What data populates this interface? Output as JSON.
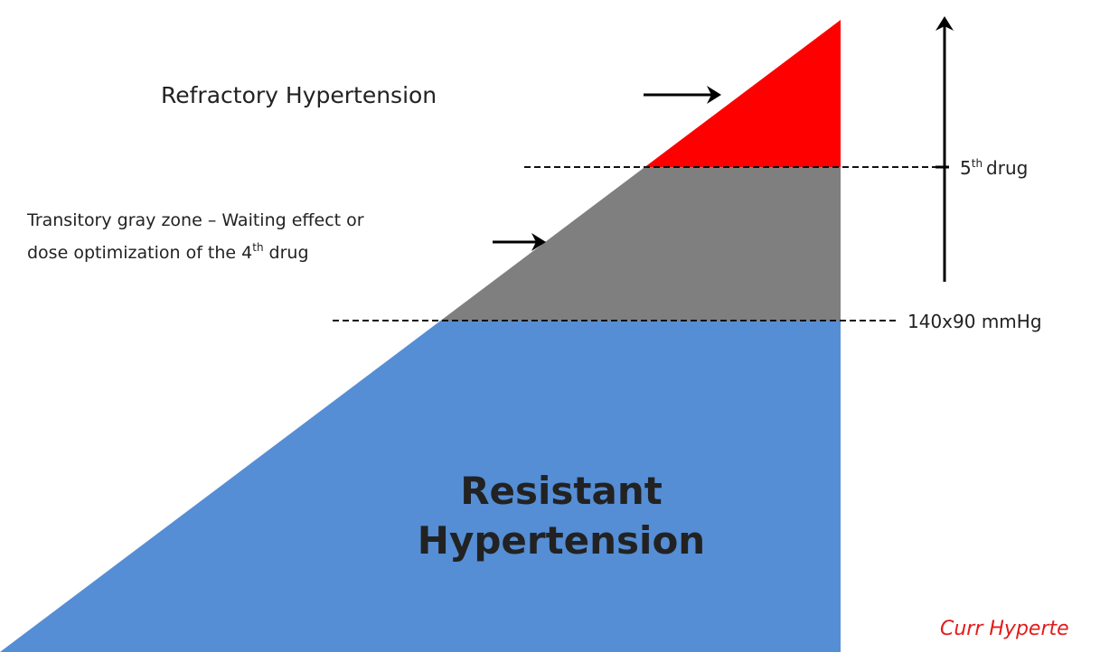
{
  "title": "Refractory Hypertension",
  "gray_zone": {
    "line1": "Transitory gray zone – Waiting effect or",
    "line2_text": "dose optimization of the 4",
    "line2_sup": "th",
    "line2_end": "drug"
  },
  "fifth_drug": {
    "number": "5",
    "sup": "th",
    "word": "drug"
  },
  "threshold": "140x90 mmHg",
  "resistant": {
    "line1": "Resistant",
    "line2": "Hypertension"
  },
  "citation": "Curr Hyperte"
}
